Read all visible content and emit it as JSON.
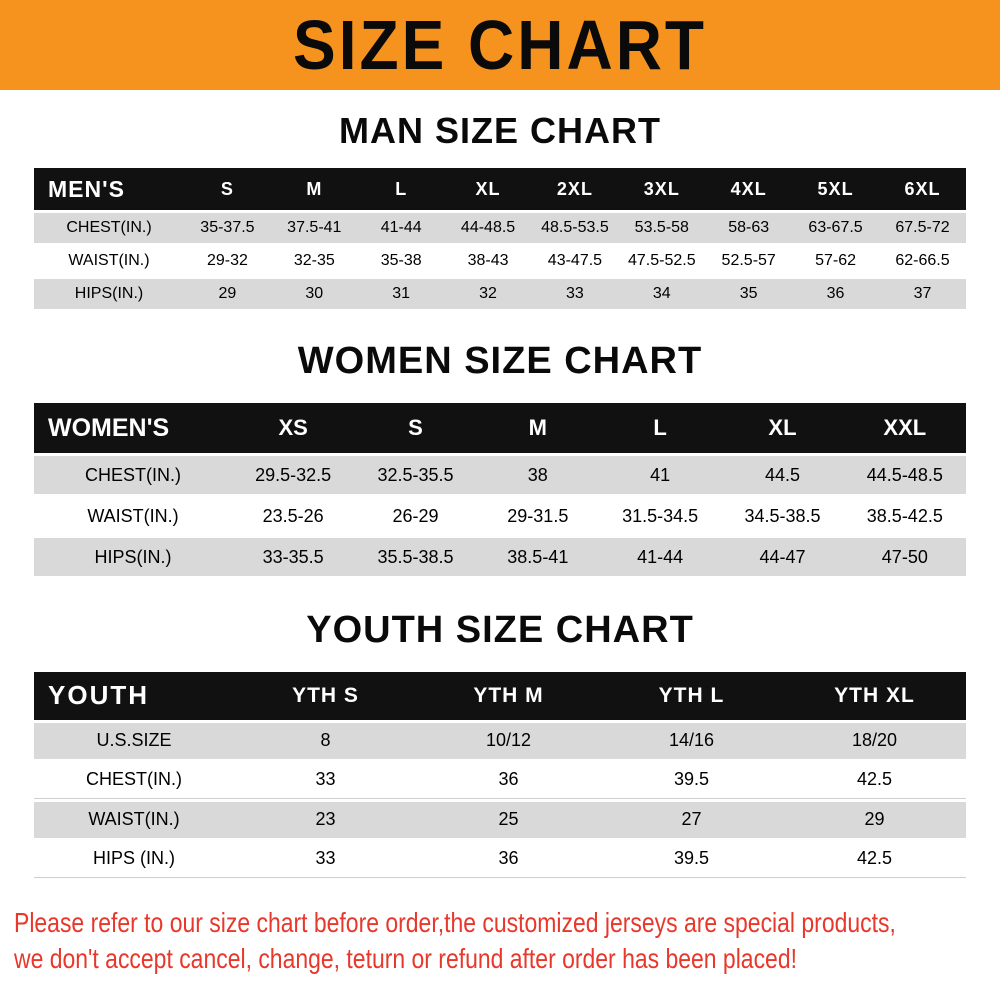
{
  "banner": {
    "title": "SIZE CHART"
  },
  "colors": {
    "banner_bg": "#f6921e",
    "header_bg": "#111111",
    "stripe": "#d9d9d9",
    "notice_red": "#e8382b"
  },
  "sections": [
    {
      "id": "men",
      "heading": "MAN SIZE CHART",
      "header_label": "MEN'S",
      "columns": [
        "S",
        "M",
        "L",
        "XL",
        "2XL",
        "3XL",
        "4XL",
        "5XL",
        "6XL"
      ],
      "rows": [
        {
          "label": "CHEST(IN.)",
          "values": [
            "35-37.5",
            "37.5-41",
            "41-44",
            "44-48.5",
            "48.5-53.5",
            "53.5-58",
            "58-63",
            "63-67.5",
            "67.5-72"
          ]
        },
        {
          "label": "WAIST(IN.)",
          "values": [
            "29-32",
            "32-35",
            "35-38",
            "38-43",
            "43-47.5",
            "47.5-52.5",
            "52.5-57",
            "57-62",
            "62-66.5"
          ]
        },
        {
          "label": "HIPS(IN.)",
          "values": [
            "29",
            "30",
            "31",
            "32",
            "33",
            "34",
            "35",
            "36",
            "37"
          ]
        }
      ]
    },
    {
      "id": "women",
      "heading": "WOMEN SIZE CHART",
      "header_label": "WOMEN'S",
      "columns": [
        "XS",
        "S",
        "M",
        "L",
        "XL",
        "XXL"
      ],
      "rows": [
        {
          "label": "CHEST(IN.)",
          "values": [
            "29.5-32.5",
            "32.5-35.5",
            "38",
            "41",
            "44.5",
            "44.5-48.5"
          ]
        },
        {
          "label": "WAIST(IN.)",
          "values": [
            "23.5-26",
            "26-29",
            "29-31.5",
            "31.5-34.5",
            "34.5-38.5",
            "38.5-42.5"
          ]
        },
        {
          "label": "HIPS(IN.)",
          "values": [
            "33-35.5",
            "35.5-38.5",
            "38.5-41",
            "41-44",
            "44-47",
            "47-50"
          ]
        }
      ]
    },
    {
      "id": "youth",
      "heading": "YOUTH SIZE CHART",
      "header_label": "YOUTH",
      "columns": [
        "YTH S",
        "YTH M",
        "YTH L",
        "YTH XL"
      ],
      "rows": [
        {
          "label": "U.S.SIZE",
          "values": [
            "8",
            "10/12",
            "14/16",
            "18/20"
          ]
        },
        {
          "label": "CHEST(IN.)",
          "values": [
            "33",
            "36",
            "39.5",
            "42.5"
          ]
        },
        {
          "label": "WAIST(IN.)",
          "values": [
            "23",
            "25",
            "27",
            "29"
          ]
        },
        {
          "label": "HIPS (IN.)",
          "values": [
            "33",
            "36",
            "39.5",
            "42.5"
          ]
        }
      ]
    }
  ],
  "footer": {
    "line1": "Please refer to our size chart before order,the customized jerseys are special products,",
    "line2": "we don't accept cancel, change, teturn or refund after order has been placed!"
  }
}
